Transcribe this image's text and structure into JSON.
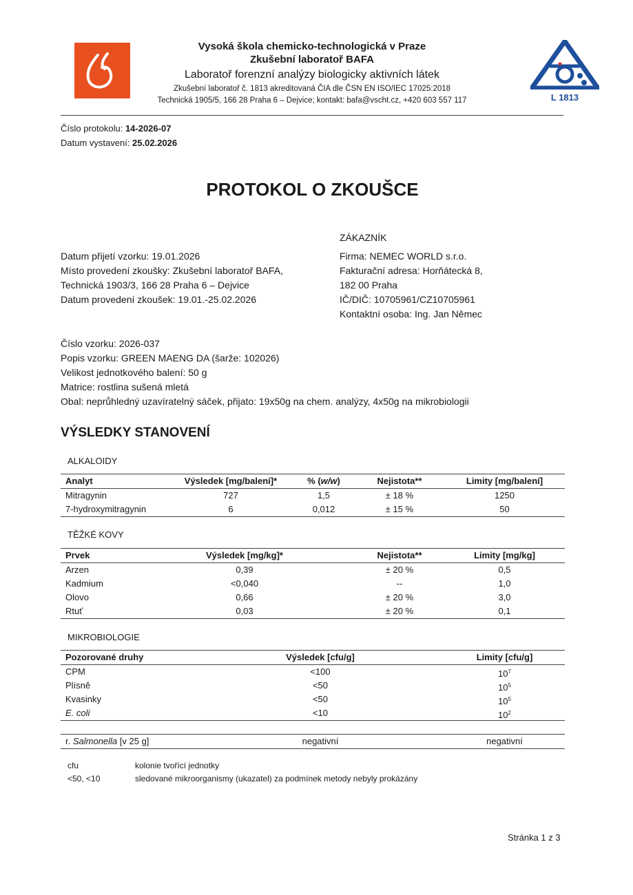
{
  "header": {
    "line1": "Vysoká škola chemicko-technologická v Praze",
    "line2": "Zkušební laboratoř BAFA",
    "line3": "Laboratoř forenzní analýzy biologicky aktivních látek",
    "line4": "Zkušební laboratoř č. 1813 akreditovaná ČIA dle ČSN EN ISO/IEC 17025:2018",
    "line5": "Technická 1905/5, 166 28 Praha 6 – Dejvice; kontakt: bafa@vscht.cz, +420 603 557 117",
    "logo_color": "#e8501f",
    "accr_logo_color": "#1e4f9c",
    "accr_logo_text": "L 1813"
  },
  "protocol": {
    "number_label": "Číslo protokolu: ",
    "number": "14-2026-07",
    "date_label": "Datum vystavení: ",
    "date": "25.02.2026"
  },
  "title": "PROTOKOL O ZKOUŠCE",
  "left_info": [
    "Datum přijetí vzorku: 19.01.2026",
    "Místo provedení zkoušky: Zkušební laboratoř BAFA,",
    "Technická 1903/3, 166 28 Praha 6 – Dejvice",
    "Datum provedení zkoušek: 19.01.-25.02.2026"
  ],
  "customer": {
    "heading": "ZÁKAZNÍK",
    "lines": [
      "Firma: NEMEC WORLD s.r.o.",
      "Fakturační adresa: Horňátecká 8,",
      "182 00 Praha",
      "IČ/DIČ: 10705961/CZ10705961",
      "Kontaktní osoba: Ing. Jan Němec"
    ]
  },
  "sample": [
    "Číslo vzorku: 2026-037",
    "Popis vzorku: GREEN MAENG DA (šarže: 102026)",
    "Velikost jednotkového balení: 50 g",
    "Matrice: rostlina sušená mletá",
    "Obal: neprůhledný uzavíratelný sáček, přijato: 19x50g na chem. analýzy, 4x50g na mikrobiologii"
  ],
  "results_heading": "VÝSLEDKY STANOVENÍ",
  "alkaloids": {
    "heading": "ALKALOIDY",
    "columns": [
      "Analyt",
      "Výsledek [mg/balení]*",
      "% (",
      "w/w",
      ")",
      "Nejistota**",
      "Limity [mg/balení]"
    ],
    "rows": [
      [
        "Mitragynin",
        "727",
        "1,5",
        "± 18 %",
        "1250"
      ],
      [
        "7-hydroxymitragynin",
        "6",
        "0,012",
        "± 15 %",
        "50"
      ]
    ]
  },
  "metals": {
    "heading": "TĚŽKÉ KOVY",
    "columns": [
      "Prvek",
      "Výsledek [mg/kg]*",
      "Nejistota**",
      "Limity [mg/kg]"
    ],
    "rows": [
      [
        "Arzen",
        "0,39",
        "± 20 %",
        "0,5"
      ],
      [
        "Kadmium",
        "<0,040",
        "--",
        "1,0"
      ],
      [
        "Olovo",
        "0,66",
        "± 20 %",
        "3,0"
      ],
      [
        "Rtuť",
        "0,03",
        "± 20 %",
        "0,1"
      ]
    ]
  },
  "micro": {
    "heading": "MIKROBIOLOGIE",
    "columns": [
      "Pozorované druhy",
      "Výsledek [cfu/g]",
      "Limity [cfu/g]"
    ],
    "rows": [
      [
        "CPM",
        "<100",
        "10",
        "7"
      ],
      [
        "Plísně",
        "<50",
        "10",
        "5"
      ],
      [
        "Kvasinky",
        "<50",
        "10",
        "5"
      ],
      [
        "E. coli",
        "<10",
        "10",
        "2"
      ]
    ],
    "salmonella": {
      "prefix": "r. ",
      "name": "Salmonella",
      "suffix": " [v 25 g]",
      "result": "negativní",
      "limit": "negativní"
    }
  },
  "notes": [
    [
      "cfu",
      "kolonie tvořící jednotky"
    ],
    [
      "<50, <10",
      "sledované mikroorganismy (ukazatel) za podmínek metody nebyly prokázány"
    ]
  ],
  "page_label": "Stránka 1 z 3"
}
